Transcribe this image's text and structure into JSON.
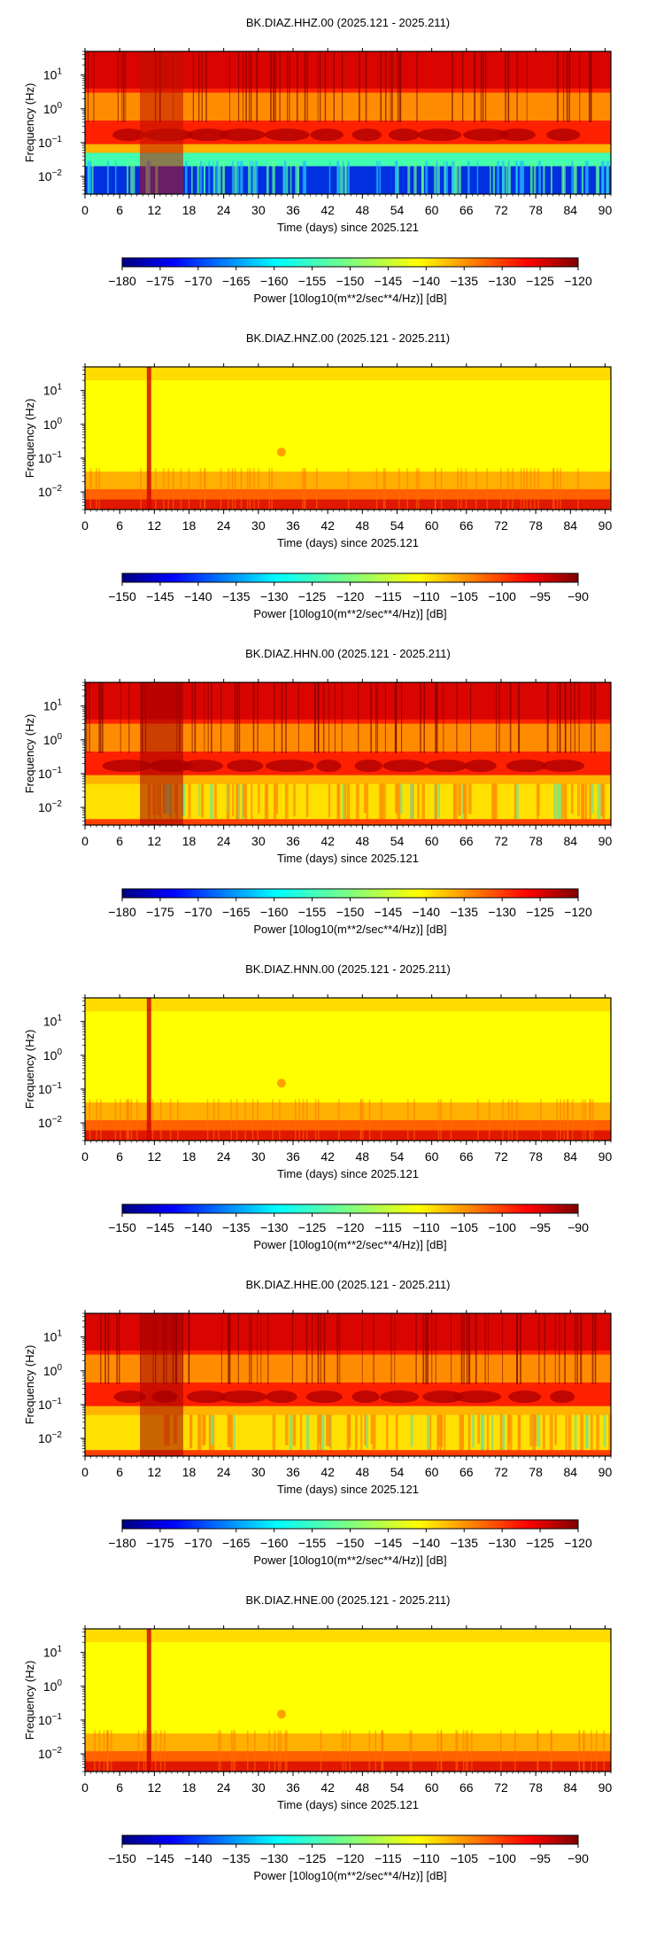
{
  "panels": [
    {
      "title": "BK.DIAZ.HHZ.00 (2025.121 - 2025.211)",
      "ylabel": "Frequency (Hz)",
      "xlabel": "Time (days) since 2025.121",
      "colorbar_label": "Power [10log10(m**2/sec**4/Hz)] [dB]",
      "colorbar_ticks": [
        "−180",
        "−175",
        "−170",
        "−165",
        "−160",
        "−155",
        "−150",
        "−145",
        "−140",
        "−135",
        "−130",
        "−125",
        "−120"
      ],
      "style": "hh_z"
    },
    {
      "title": "BK.DIAZ.HNZ.00 (2025.121 - 2025.211)",
      "ylabel": "Frequency (Hz)",
      "xlabel": "Time (days) since 2025.121",
      "colorbar_label": "Power [10log10(m**2/sec**4/Hz)] [dB]",
      "colorbar_ticks": [
        "−150",
        "−145",
        "−140",
        "−135",
        "−130",
        "−125",
        "−120",
        "−115",
        "−110",
        "−105",
        "−100",
        "−95",
        "−90"
      ],
      "style": "hn"
    },
    {
      "title": "BK.DIAZ.HHN.00 (2025.121 - 2025.211)",
      "ylabel": "Frequency (Hz)",
      "xlabel": "Time (days) since 2025.121",
      "colorbar_label": "Power [10log10(m**2/sec**4/Hz)] [dB]",
      "colorbar_ticks": [
        "−180",
        "−175",
        "−170",
        "−165",
        "−160",
        "−155",
        "−150",
        "−145",
        "−140",
        "−135",
        "−130",
        "−125",
        "−120"
      ],
      "style": "hh_h"
    },
    {
      "title": "BK.DIAZ.HNN.00 (2025.121 - 2025.211)",
      "ylabel": "Frequency (Hz)",
      "xlabel": "Time (days) since 2025.121",
      "colorbar_label": "Power [10log10(m**2/sec**4/Hz)] [dB]",
      "colorbar_ticks": [
        "−150",
        "−145",
        "−140",
        "−135",
        "−130",
        "−125",
        "−120",
        "−115",
        "−110",
        "−105",
        "−100",
        "−95",
        "−90"
      ],
      "style": "hn"
    },
    {
      "title": "BK.DIAZ.HHE.00 (2025.121 - 2025.211)",
      "ylabel": "Frequency (Hz)",
      "xlabel": "Time (days) since 2025.121",
      "colorbar_label": "Power [10log10(m**2/sec**4/Hz)] [dB]",
      "colorbar_ticks": [
        "−180",
        "−175",
        "−170",
        "−165",
        "−160",
        "−155",
        "−150",
        "−145",
        "−140",
        "−135",
        "−130",
        "−125",
        "−120"
      ],
      "style": "hh_h"
    },
    {
      "title": "BK.DIAZ.HNE.00 (2025.121 - 2025.211)",
      "ylabel": "Frequency (Hz)",
      "xlabel": "Time (days) since 2025.121",
      "colorbar_label": "Power [10log10(m**2/sec**4/Hz)] [dB]",
      "colorbar_ticks": [
        "−150",
        "−145",
        "−140",
        "−135",
        "−130",
        "−125",
        "−120",
        "−115",
        "−110",
        "−105",
        "−100",
        "−95",
        "−90"
      ],
      "style": "hn"
    }
  ],
  "x_ticks": [
    "0",
    "6",
    "12",
    "18",
    "24",
    "30",
    "36",
    "42",
    "48",
    "54",
    "60",
    "66",
    "72",
    "78",
    "84",
    "90"
  ],
  "y_ticks": [
    {
      "base": "10",
      "exp": "1"
    },
    {
      "base": "10",
      "exp": "0"
    },
    {
      "base": "10",
      "exp": "−1"
    },
    {
      "base": "10",
      "exp": "−2"
    }
  ],
  "chart_data": [
    {
      "type": "heatmap",
      "title": "BK.DIAZ.HHZ.00 (2025.121 - 2025.211)",
      "xlabel": "Time (days) since 2025.121",
      "ylabel": "Frequency (Hz)",
      "x_range": [
        0,
        91
      ],
      "y_scale": "log",
      "y_range": [
        0.003,
        50
      ],
      "color_range": [
        -180,
        -120
      ],
      "colorbar_label": "Power [10log10(m**2/sec**4/Hz)] [dB]",
      "colormap": "jet"
    },
    {
      "type": "heatmap",
      "title": "BK.DIAZ.HNZ.00 (2025.121 - 2025.211)",
      "xlabel": "Time (days) since 2025.121",
      "ylabel": "Frequency (Hz)",
      "x_range": [
        0,
        91
      ],
      "y_scale": "log",
      "y_range": [
        0.003,
        50
      ],
      "color_range": [
        -150,
        -90
      ],
      "colorbar_label": "Power [10log10(m**2/sec**4/Hz)] [dB]",
      "colormap": "jet"
    },
    {
      "type": "heatmap",
      "title": "BK.DIAZ.HHN.00 (2025.121 - 2025.211)",
      "xlabel": "Time (days) since 2025.121",
      "ylabel": "Frequency (Hz)",
      "x_range": [
        0,
        91
      ],
      "y_scale": "log",
      "y_range": [
        0.003,
        50
      ],
      "color_range": [
        -180,
        -120
      ],
      "colorbar_label": "Power [10log10(m**2/sec**4/Hz)] [dB]",
      "colormap": "jet"
    },
    {
      "type": "heatmap",
      "title": "BK.DIAZ.HNN.00 (2025.121 - 2025.211)",
      "xlabel": "Time (days) since 2025.121",
      "ylabel": "Frequency (Hz)",
      "x_range": [
        0,
        91
      ],
      "y_scale": "log",
      "y_range": [
        0.003,
        50
      ],
      "color_range": [
        -150,
        -90
      ],
      "colorbar_label": "Power [10log10(m**2/sec**4/Hz)] [dB]",
      "colormap": "jet"
    },
    {
      "type": "heatmap",
      "title": "BK.DIAZ.HHE.00 (2025.121 - 2025.211)",
      "xlabel": "Time (days) since 2025.121",
      "ylabel": "Frequency (Hz)",
      "x_range": [
        0,
        91
      ],
      "y_scale": "log",
      "y_range": [
        0.003,
        50
      ],
      "color_range": [
        -180,
        -120
      ],
      "colorbar_label": "Power [10log10(m**2/sec**4/Hz)] [dB]",
      "colormap": "jet"
    },
    {
      "type": "heatmap",
      "title": "BK.DIAZ.HNE.00 (2025.121 - 2025.211)",
      "xlabel": "Time (days) since 2025.121",
      "ylabel": "Frequency (Hz)",
      "x_range": [
        0,
        91
      ],
      "y_scale": "log",
      "y_range": [
        0.003,
        50
      ],
      "color_range": [
        -150,
        -90
      ],
      "colorbar_label": "Power [10log10(m**2/sec**4/Hz)] [dB]",
      "colormap": "jet"
    }
  ]
}
